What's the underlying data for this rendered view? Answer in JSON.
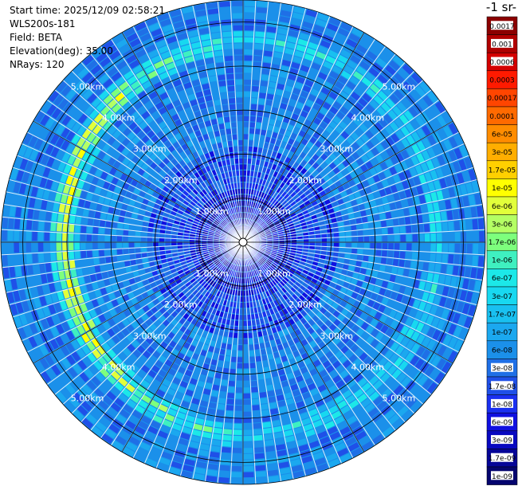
{
  "header": {
    "start_time": "Start time: 2025/12/09 02:58:21",
    "instrument": "WLS200s-181",
    "field": "Field: BETA",
    "elevation": "Elevation(deg): 35.00",
    "nrays": "NRays: 120"
  },
  "colorbar_title": "-1 sr-",
  "chart_data": {
    "type": "heatmap",
    "projection": "polar-ppi",
    "field": "BETA",
    "elevation_deg": 35.0,
    "n_rays": 120,
    "max_range_km": 5.5,
    "range_rings_km": [
      1.0,
      2.0,
      3.0,
      4.0,
      5.0
    ],
    "ring_labels": [
      "1.00km",
      "2.00km",
      "3.00km",
      "4.00km",
      "5.00km"
    ],
    "aerosol_ring_range_km": 4.4,
    "colorbar": {
      "scale": "log",
      "min": 1e-09,
      "max": 0.0017,
      "tick_labels": [
        "0.0017",
        "0.001",
        "0.0006",
        "0.0003",
        "0.00017",
        "0.0001",
        "6e-05",
        "3e-05",
        "1.7e-05",
        "1e-05",
        "6e-06",
        "3e-06",
        "1.7e-06",
        "1e-06",
        "6e-07",
        "3e-07",
        "1.7e-07",
        "1e-07",
        "6e-08",
        "3e-08",
        "1.7e-08",
        "1e-08",
        "6e-09",
        "3e-09",
        "1.7e-09",
        "1e-09"
      ],
      "colors": [
        "#8b0000",
        "#b00000",
        "#d40000",
        "#ff1a00",
        "#ff4500",
        "#ff6a00",
        "#ff8c00",
        "#ffae00",
        "#ffd000",
        "#ffff00",
        "#e2ff3a",
        "#b4ff64",
        "#7dff7d",
        "#3ff0c0",
        "#1ce8e8",
        "#18d8f0",
        "#19c0f0",
        "#1ba8ef",
        "#1b90ea",
        "#1f6fe6",
        "#1f50e8",
        "#1a30f0",
        "#1010e0",
        "#0808c0",
        "#050598",
        "#04046e"
      ]
    }
  }
}
